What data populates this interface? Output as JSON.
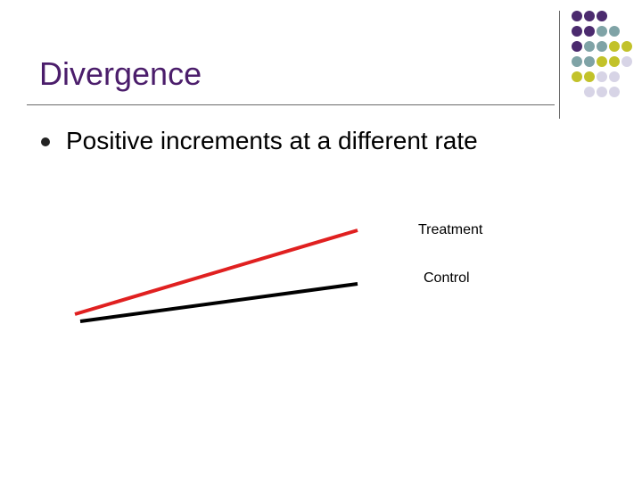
{
  "slide": {
    "title": "Divergence",
    "bullets": [
      "Positive increments at a different rate"
    ]
  },
  "diagram": {
    "lines": [
      {
        "label": "Treatment",
        "color": "#e02020"
      },
      {
        "label": "Control",
        "color": "#000000"
      }
    ]
  },
  "decoration": {
    "dot_colors": {
      "purple": "#4b2a6e",
      "teal": "#7fa3a6",
      "olive": "#c2c22a",
      "lavender": "#d7d4e6"
    }
  },
  "theme": {
    "title_color": "#4b1d6b"
  }
}
